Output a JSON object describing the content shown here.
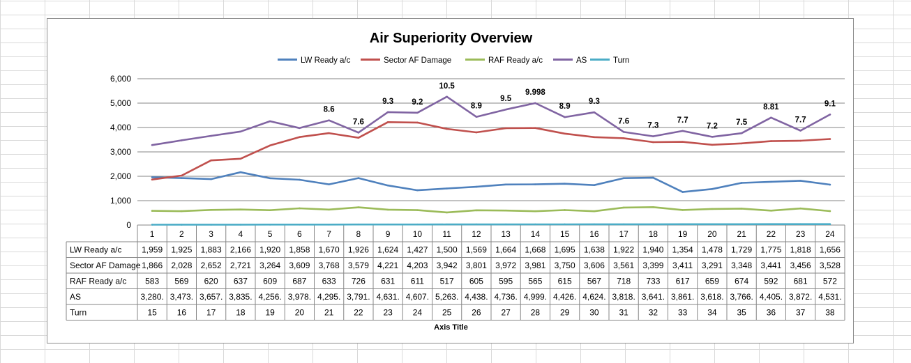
{
  "chart_data": {
    "type": "line",
    "title": "Air Superiority Overview",
    "xlabel": "Axis Title",
    "ylabel": "",
    "categories": [
      "1",
      "2",
      "3",
      "4",
      "5",
      "6",
      "7",
      "8",
      "9",
      "10",
      "11",
      "12",
      "13",
      "14",
      "15",
      "16",
      "17",
      "18",
      "19",
      "20",
      "21",
      "22",
      "23",
      "24"
    ],
    "y_ticks": [
      "0",
      "1,000",
      "2,000",
      "3,000",
      "4,000",
      "5,000",
      "6,000"
    ],
    "ylim": [
      0,
      6000
    ],
    "grid": true,
    "legend_position": "top",
    "series": [
      {
        "name": "LW Ready a/c",
        "color": "#4f81bd",
        "values": [
          1959,
          1925,
          1883,
          2166,
          1920,
          1858,
          1670,
          1926,
          1624,
          1427,
          1500,
          1569,
          1664,
          1668,
          1695,
          1638,
          1922,
          1940,
          1354,
          1478,
          1729,
          1775,
          1818,
          1656
        ],
        "table_values": [
          "1,959",
          "1,925",
          "1,883",
          "2,166",
          "1,920",
          "1,858",
          "1,670",
          "1,926",
          "1,624",
          "1,427",
          "1,500",
          "1,569",
          "1,664",
          "1,668",
          "1,695",
          "1,638",
          "1,922",
          "1,940",
          "1,354",
          "1,478",
          "1,729",
          "1,775",
          "1,818",
          "1,656"
        ]
      },
      {
        "name": "Sector AF Damage",
        "color": "#c0504d",
        "values": [
          1866,
          2028,
          2652,
          2721,
          3264,
          3609,
          3768,
          3579,
          4221,
          4203,
          3942,
          3801,
          3972,
          3981,
          3750,
          3606,
          3561,
          3399,
          3411,
          3291,
          3348,
          3441,
          3456,
          3528
        ],
        "table_values": [
          "1,866",
          "2,028",
          "2,652",
          "2,721",
          "3,264",
          "3,609",
          "3,768",
          "3,579",
          "4,221",
          "4,203",
          "3,942",
          "3,801",
          "3,972",
          "3,981",
          "3,750",
          "3,606",
          "3,561",
          "3,399",
          "3,411",
          "3,291",
          "3,348",
          "3,441",
          "3,456",
          "3,528"
        ]
      },
      {
        "name": "RAF Ready a/c",
        "color": "#9bbb59",
        "values": [
          583,
          569,
          620,
          637,
          609,
          687,
          633,
          726,
          631,
          611,
          517,
          605,
          595,
          565,
          615,
          567,
          718,
          733,
          617,
          659,
          674,
          592,
          681,
          572
        ],
        "table_values": [
          "583",
          "569",
          "620",
          "637",
          "609",
          "687",
          "633",
          "726",
          "631",
          "611",
          "517",
          "605",
          "595",
          "565",
          "615",
          "567",
          "718",
          "733",
          "617",
          "659",
          "674",
          "592",
          "681",
          "572"
        ]
      },
      {
        "name": "AS",
        "color": "#8064a2",
        "values": [
          3280,
          3473,
          3657,
          3835,
          4256,
          3978,
          4295,
          3791,
          4631,
          4607,
          5263,
          4438,
          4736,
          4999,
          4426,
          4624,
          3818,
          3641,
          3861,
          3618,
          3766,
          4405,
          3872,
          4531
        ],
        "table_values": [
          "3,280.",
          "3,473.",
          "3,657.",
          "3,835.",
          "4,256.",
          "3,978.",
          "4,295.",
          "3,791.",
          "4,631.",
          "4,607.",
          "5,263.",
          "4,438.",
          "4,736.",
          "4,999.",
          "4,426.",
          "4,624.",
          "3,818.",
          "3,641.",
          "3,861.",
          "3,618.",
          "3,766.",
          "4,405.",
          "3,872.",
          "4,531."
        ],
        "data_labels": [
          null,
          null,
          null,
          null,
          null,
          null,
          "8.6",
          "7.6",
          "9.3",
          "9.2",
          "10.5",
          "8.9",
          "9.5",
          "9.998",
          "8.9",
          "9.3",
          "7.6",
          "7.3",
          "7.7",
          "7.2",
          "7.5",
          "8.81",
          "7.7",
          "9.1"
        ]
      },
      {
        "name": "Turn",
        "color": "#4bacc6",
        "values": [
          15,
          16,
          17,
          18,
          19,
          20,
          21,
          22,
          23,
          24,
          25,
          26,
          27,
          28,
          29,
          30,
          31,
          32,
          33,
          34,
          35,
          36,
          37,
          38
        ],
        "table_values": [
          "15",
          "16",
          "17",
          "18",
          "19",
          "20",
          "21",
          "22",
          "23",
          "24",
          "25",
          "26",
          "27",
          "28",
          "29",
          "30",
          "31",
          "32",
          "33",
          "34",
          "35",
          "36",
          "37",
          "38"
        ]
      }
    ]
  }
}
